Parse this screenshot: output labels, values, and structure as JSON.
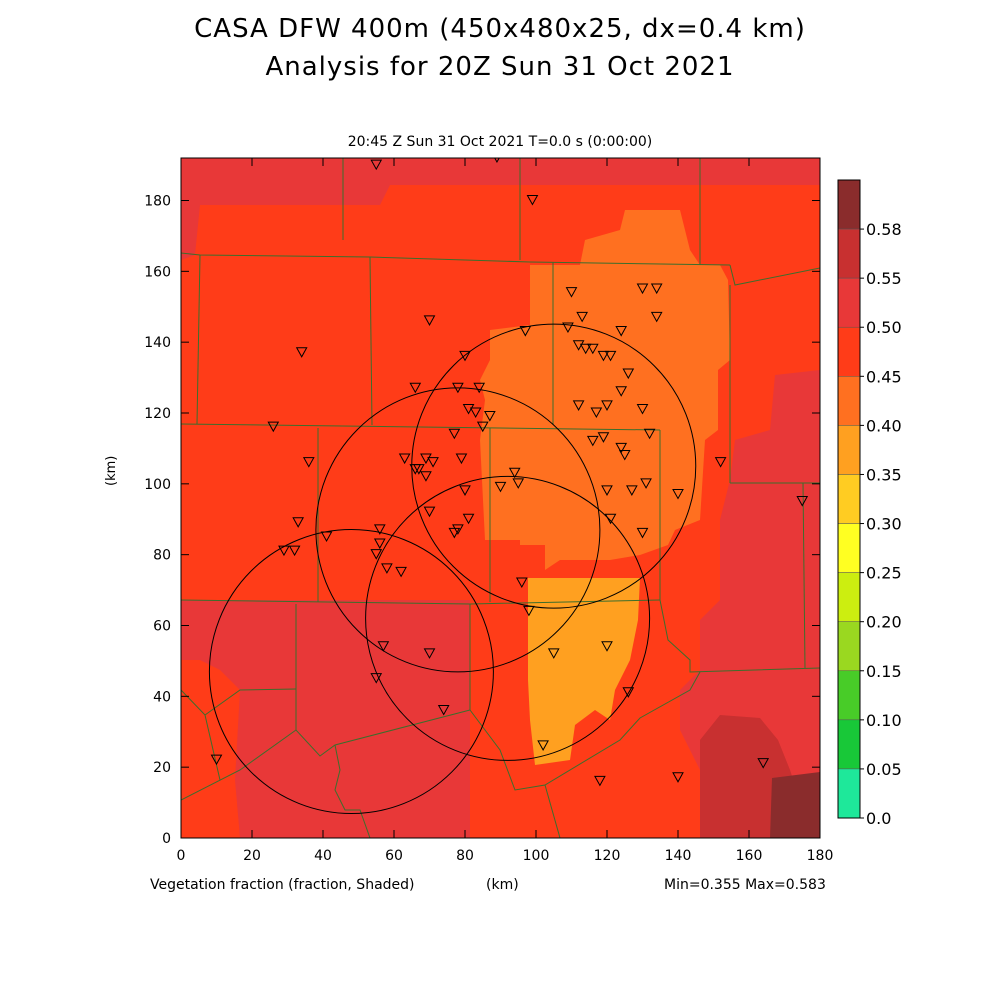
{
  "title_line1": "CASA DFW 400m (450x480x25, dx=0.4 km)",
  "title_line2": "Analysis for 20Z Sun 31 Oct 2021",
  "subtitle": "20:45 Z Sun 31 Oct 2021    T=0.0 s (0:00:00)",
  "field_label": "Vegetation fraction (fraction, Shaded)",
  "x_unit": "(km)",
  "y_unit": "(km)",
  "min_max": "Min=0.355 Max=0.583",
  "x_ticks": [
    "0",
    "20",
    "40",
    "60",
    "80",
    "100",
    "120",
    "140",
    "160",
    "180"
  ],
  "y_ticks": [
    "0",
    "20",
    "40",
    "60",
    "80",
    "100",
    "120",
    "140",
    "160",
    "180"
  ],
  "colorbar": {
    "labels": [
      "0.0",
      "0.05",
      "0.10",
      "0.15",
      "0.20",
      "0.25",
      "0.30",
      "0.35",
      "0.40",
      "0.45",
      "0.50",
      "0.55",
      "0.58"
    ],
    "colors": [
      "#1ee89a",
      "#18c838",
      "#48cc28",
      "#9ad820",
      "#ccee10",
      "#ffff22",
      "#ffcc22",
      "#ffa020",
      "#ff7020",
      "#ff3c18",
      "#e83838",
      "#c83030",
      "#8a2c2c"
    ]
  },
  "chart_data": {
    "type": "heatmap",
    "x_range_km": [
      0,
      180
    ],
    "y_range_km": [
      0,
      192
    ],
    "value_range": [
      0.0,
      0.58
    ],
    "min": 0.355,
    "max": 0.583,
    "radar_circles": [
      {
        "cx": 105,
        "cy": 105,
        "r": 40
      },
      {
        "cx": 78,
        "cy": 87,
        "r": 40
      },
      {
        "cx": 92,
        "cy": 62,
        "r": 40
      },
      {
        "cx": 48,
        "cy": 47,
        "r": 40
      }
    ],
    "stations": [
      [
        55,
        190
      ],
      [
        89,
        192
      ],
      [
        99,
        180
      ],
      [
        110,
        154
      ],
      [
        130,
        155
      ],
      [
        134,
        155
      ],
      [
        134,
        147
      ],
      [
        113,
        147
      ],
      [
        109,
        144
      ],
      [
        97,
        143
      ],
      [
        124,
        143
      ],
      [
        112,
        139
      ],
      [
        116,
        138
      ],
      [
        119,
        136
      ],
      [
        114,
        138
      ],
      [
        121,
        136
      ],
      [
        126,
        131
      ],
      [
        80,
        136
      ],
      [
        34,
        137
      ],
      [
        70,
        146
      ],
      [
        66,
        127
      ],
      [
        78,
        127
      ],
      [
        84,
        127
      ],
      [
        87,
        119
      ],
      [
        124,
        126
      ],
      [
        120,
        122
      ],
      [
        112,
        122
      ],
      [
        117,
        120
      ],
      [
        130,
        121
      ],
      [
        119,
        113
      ],
      [
        116,
        112
      ],
      [
        132,
        114
      ],
      [
        81,
        121
      ],
      [
        83,
        120
      ],
      [
        77,
        114
      ],
      [
        85,
        116
      ],
      [
        124,
        110
      ],
      [
        125,
        108
      ],
      [
        26,
        116
      ],
      [
        36,
        106
      ],
      [
        63,
        107
      ],
      [
        66,
        104
      ],
      [
        69,
        107
      ],
      [
        71,
        106
      ],
      [
        67,
        104
      ],
      [
        69,
        102
      ],
      [
        79,
        107
      ],
      [
        94,
        103
      ],
      [
        95,
        100
      ],
      [
        90,
        99
      ],
      [
        80,
        98
      ],
      [
        120,
        98
      ],
      [
        127,
        98
      ],
      [
        131,
        100
      ],
      [
        140,
        97
      ],
      [
        152,
        106
      ],
      [
        175,
        95
      ],
      [
        70,
        92
      ],
      [
        81,
        90
      ],
      [
        121,
        90
      ],
      [
        130,
        86
      ],
      [
        78,
        87
      ],
      [
        77,
        86
      ],
      [
        33,
        89
      ],
      [
        56,
        87
      ],
      [
        29,
        81
      ],
      [
        32,
        81
      ],
      [
        41,
        85
      ],
      [
        56,
        83
      ],
      [
        55,
        80
      ],
      [
        58,
        76
      ],
      [
        62,
        75
      ],
      [
        96,
        72
      ],
      [
        98,
        64
      ],
      [
        57,
        54
      ],
      [
        70,
        52
      ],
      [
        105,
        52
      ],
      [
        120,
        54
      ],
      [
        55,
        45
      ],
      [
        74,
        36
      ],
      [
        126,
        41
      ],
      [
        102,
        26
      ],
      [
        10,
        22
      ],
      [
        118,
        16
      ],
      [
        140,
        17
      ],
      [
        164,
        21
      ]
    ]
  }
}
